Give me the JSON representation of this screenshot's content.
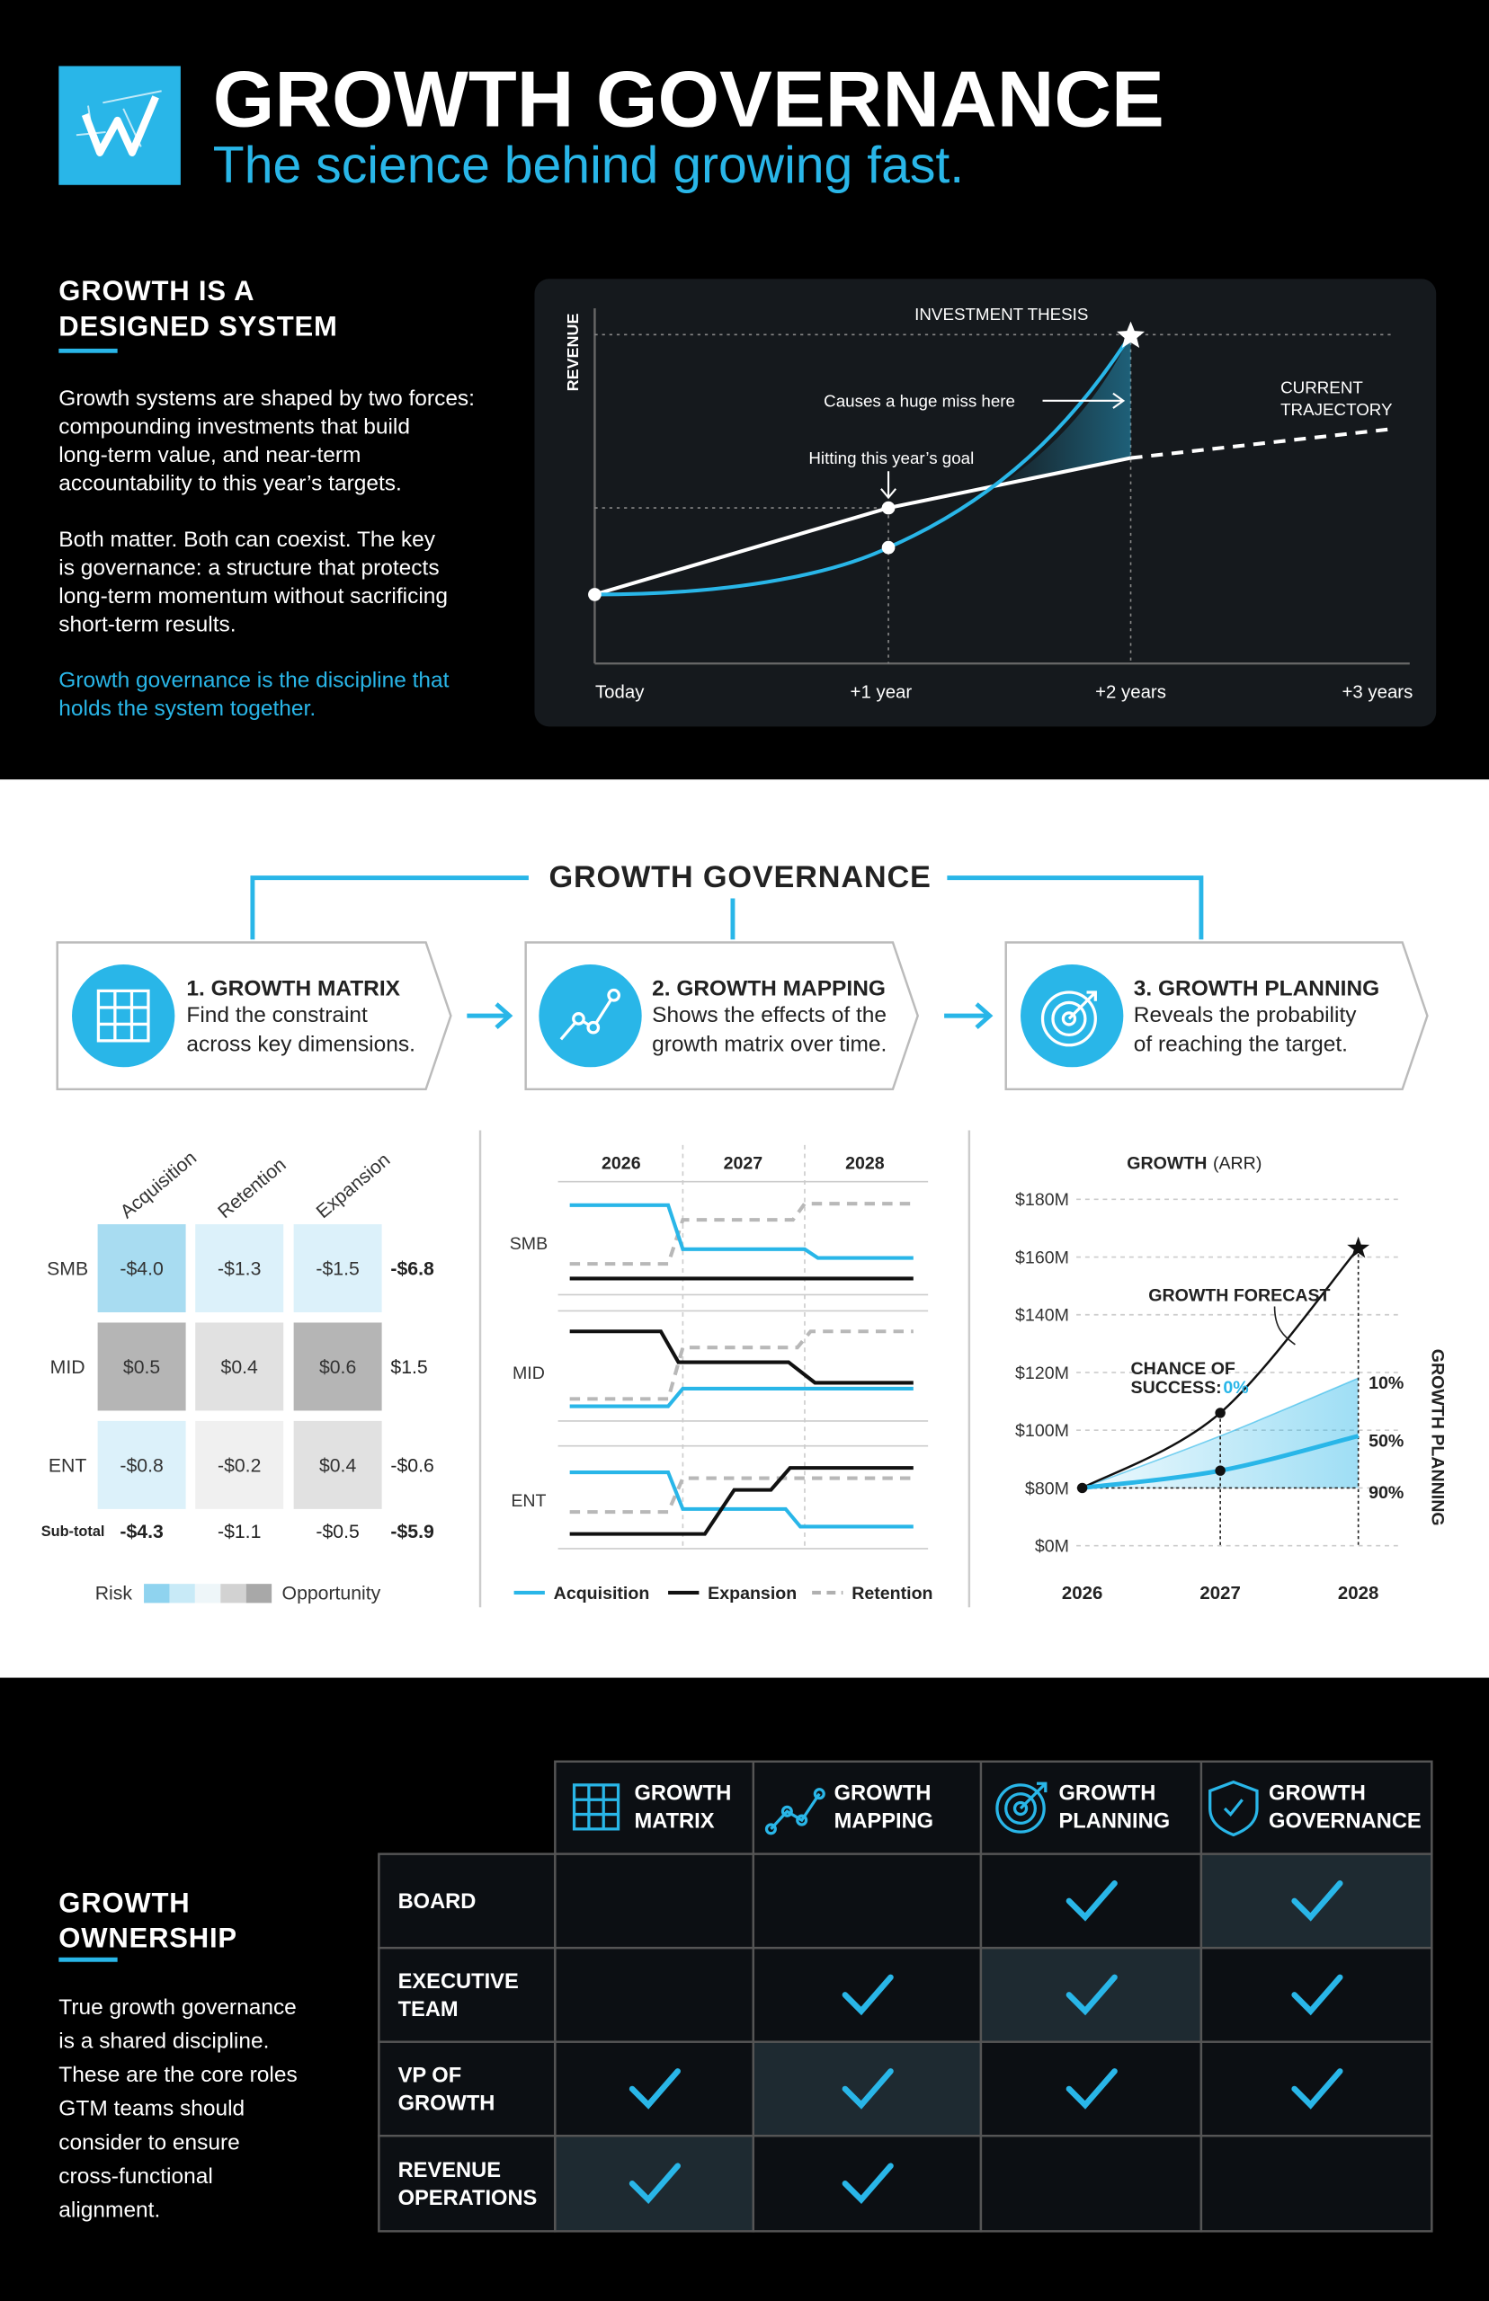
{
  "header": {
    "title": "GROWTH GOVERNANCE",
    "subtitle": "The science behind growing fast."
  },
  "intro": {
    "heading": [
      "GROWTH IS A",
      "DESIGNED SYSTEM"
    ],
    "paragraphs": [
      [
        "Growth systems are shaped by two forces:",
        "compounding investments that build",
        "long-term value, and near-term",
        "accountability to this year’s targets."
      ],
      [
        "Both matter. Both can coexist. The key",
        "is governance: a structure that protects",
        "long-term momentum without sacrificing",
        "short-term results."
      ]
    ],
    "highlight": [
      "Growth governance is the discipline that",
      "holds the system together."
    ]
  },
  "revenue_chart": {
    "axis_label": "REVENUE",
    "x_labels": [
      "Today",
      "+1 year",
      "+2 years",
      "+3 years"
    ],
    "thesis": "INVESTMENT THESIS",
    "miss": "Causes a huge miss here",
    "goal": "Hitting this year’s goal",
    "trajectory": [
      "CURRENT",
      "TRAJECTORY"
    ]
  },
  "framework": {
    "title": "GROWTH GOVERNANCE",
    "steps": [
      {
        "title": "1. GROWTH MATRIX",
        "text": [
          "Find the constraint",
          "across key dimensions."
        ]
      },
      {
        "title": "2. GROWTH MAPPING",
        "text": [
          "Shows the effects of the",
          "growth matrix over time."
        ]
      },
      {
        "title": "3. GROWTH PLANNING",
        "text": [
          "Reveals the probability",
          "of reaching the target."
        ]
      }
    ]
  },
  "matrix": {
    "columns": [
      "Acquisition",
      "Retention",
      "Expansion"
    ],
    "rows": [
      {
        "label": "SMB",
        "cells": [
          "-$4.0",
          "-$1.3",
          "-$1.5"
        ],
        "colors": [
          "#a8dcf1",
          "#dcf1fa",
          "#dcf1fa"
        ],
        "total": "-$6.8"
      },
      {
        "label": "MID",
        "cells": [
          "$0.5",
          "$0.4",
          "$0.6"
        ],
        "colors": [
          "#b5b5b5",
          "#e1e1e1",
          "#b5b5b5"
        ],
        "total": "$1.5"
      },
      {
        "label": "ENT",
        "cells": [
          "-$0.8",
          "-$0.2",
          "$0.4"
        ],
        "colors": [
          "#dcf1fa",
          "#f0f0f0",
          "#e1e1e1"
        ],
        "total": "-$0.6"
      }
    ],
    "subtotal": {
      "label": "Sub-total",
      "cells": [
        "-$4.3",
        "-$1.1",
        "-$0.5"
      ],
      "total": "-$5.9"
    },
    "legend": {
      "low": "Risk",
      "high": "Opportunity",
      "colors": [
        "#8fd3ef",
        "#c8eaf7",
        "#eef6f9",
        "#d2d2d2",
        "#a8a8a8"
      ]
    }
  },
  "mapping": {
    "years": [
      "2026",
      "2027",
      "2028"
    ],
    "rows": [
      "SMB",
      "MID",
      "ENT"
    ],
    "legend": [
      {
        "name": "Acquisition",
        "color": "#29b6e8"
      },
      {
        "name": "Expansion",
        "color": "#111111"
      },
      {
        "name": "Retention",
        "color": "#b0b0b0",
        "dashed": true
      }
    ]
  },
  "chart_data": {
    "type": "line",
    "title": "GROWTH",
    "title_suffix": "(ARR)",
    "categories": [
      "2026",
      "2027",
      "2028"
    ],
    "series": [
      {
        "color": "#111111",
        "values": [
          80,
          106,
          163
        ]
      },
      {
        "color": "#29b6e8",
        "values": [
          80,
          86,
          98
        ]
      }
    ],
    "band": {
      "color": "#29b6e8",
      "upper": [
        80,
        98,
        118
      ],
      "lower": [
        80,
        80,
        80
      ],
      "labels": [
        "10%",
        "50%",
        "90%"
      ]
    },
    "ylim": [
      0,
      180
    ],
    "yticks": [
      {
        "value": 0,
        "label": "$0M"
      },
      {
        "value": 80,
        "label": "$80M"
      },
      {
        "value": 100,
        "label": "$100M"
      },
      {
        "value": 120,
        "label": "$120M"
      },
      {
        "value": 140,
        "label": "$140M"
      },
      {
        "value": 160,
        "label": "$160M"
      },
      {
        "value": 180,
        "label": "$180M"
      }
    ],
    "grid": true,
    "forecast_label": "GROWTH FORECAST",
    "chance_label": [
      "CHANCE OF",
      "SUCCESS:"
    ],
    "chance_value": "0%",
    "side_label": "GROWTH PLANNING"
  },
  "ownership": {
    "heading": [
      "GROWTH",
      "OWNERSHIP"
    ],
    "text": [
      "True growth governance",
      "is a shared discipline.",
      "These are the core roles",
      "GTM teams should",
      "consider to ensure",
      "cross-functional",
      "alignment."
    ],
    "columns": [
      [
        "GROWTH",
        "MATRIX"
      ],
      [
        "GROWTH",
        "MAPPING"
      ],
      [
        "GROWTH",
        "PLANNING"
      ],
      [
        "GROWTH",
        "GOVERNANCE"
      ]
    ],
    "rows": [
      {
        "label": [
          "BOARD"
        ],
        "checks": [
          false,
          false,
          true,
          true
        ],
        "highlight": 3
      },
      {
        "label": [
          "EXECUTIVE",
          "TEAM"
        ],
        "checks": [
          false,
          true,
          true,
          true
        ],
        "highlight": 2
      },
      {
        "label": [
          "VP OF",
          "GROWTH"
        ],
        "checks": [
          true,
          true,
          true,
          true
        ],
        "highlight": 1
      },
      {
        "label": [
          "REVENUE",
          "OPERATIONS"
        ],
        "checks": [
          true,
          true,
          false,
          false
        ],
        "highlight": 0
      }
    ]
  }
}
